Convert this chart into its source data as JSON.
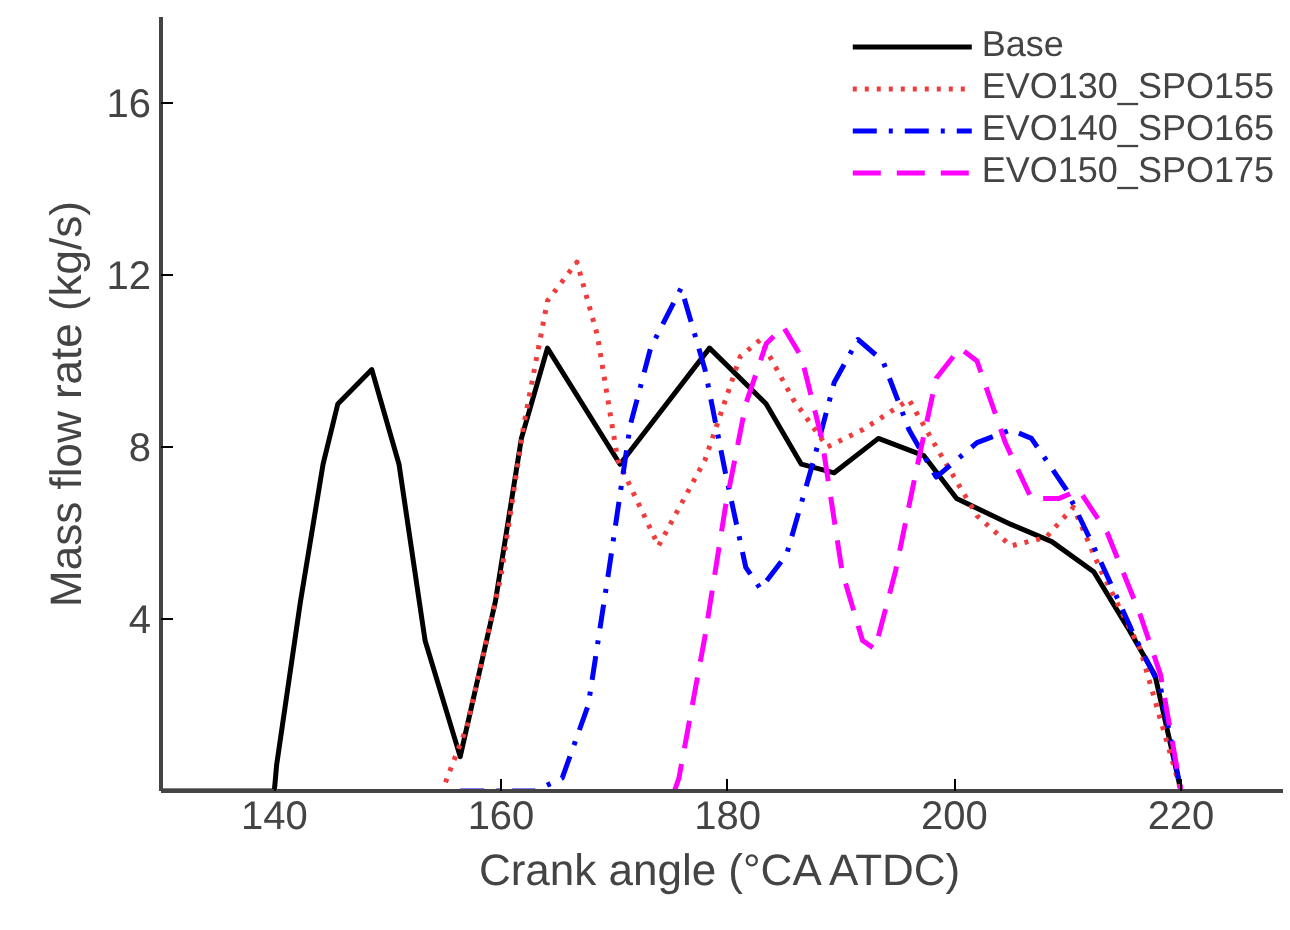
{
  "chart_data": {
    "type": "line",
    "xlabel": "Crank angle (°CA ATDC)",
    "ylabel": "Mass flow rate (kg/s)",
    "xlim": [
      130,
      229
    ],
    "ylim": [
      0,
      18
    ],
    "xticks": [
      140,
      160,
      180,
      200,
      220
    ],
    "yticks": [
      4,
      8,
      12,
      16
    ],
    "grid": false,
    "legend": "top right",
    "series": [
      {
        "name": "Base",
        "color": "#000000",
        "line_style": "solid",
        "x": [
          130,
          140,
          140.2,
          142.3,
          144.3,
          145.6,
          148.6,
          151,
          153.3,
          156.4,
          159.5,
          161.8,
          164.1,
          170.5,
          178.4,
          183.4,
          186.5,
          189.4,
          193.3,
          197.3,
          200.2,
          205,
          208.6,
          212.3,
          215.3,
          217.7,
          220
        ],
        "values": [
          0,
          0,
          0.6,
          4.4,
          7.6,
          9.0,
          9.8,
          7.6,
          3.5,
          0.8,
          4.4,
          8.2,
          10.3,
          7.6,
          10.3,
          9.0,
          7.6,
          7.4,
          8.2,
          7.8,
          6.8,
          6.2,
          5.8,
          5.1,
          3.8,
          2.7,
          0
        ]
      },
      {
        "name": "EVO130_SPO155",
        "color": "#f03c3c",
        "line_style": "dotted",
        "x": [
          155.1,
          157,
          160,
          162,
          164.1,
          166.7,
          168.5,
          170.3,
          173.9,
          178,
          181.1,
          182.9,
          185.8,
          188.8,
          191.9,
          196,
          198.4,
          202,
          205,
          208.1,
          210.5,
          212.8,
          216.4,
          220
        ],
        "values": [
          0.2,
          1.5,
          5,
          8.5,
          11.4,
          12.3,
          10.6,
          7.7,
          5.7,
          7.7,
          10.1,
          10.5,
          9.1,
          8.0,
          8.4,
          9.1,
          8.0,
          6.4,
          5.7,
          5.9,
          6.6,
          5.2,
          3.3,
          0
        ]
      },
      {
        "name": "EVO140_SPO165",
        "color": "#0000ff",
        "line_style": "dashdot",
        "x": [
          156.4,
          163,
          165.4,
          167.7,
          169.5,
          171.4,
          173.2,
          175.9,
          178,
          179.8,
          181.6,
          182.9,
          185.2,
          187.6,
          189.4,
          191.5,
          193.7,
          196,
          198.4,
          202,
          205,
          206.8,
          209.9,
          212.8,
          215.9,
          218.2,
          220
        ],
        "values": [
          0,
          0,
          0.3,
          2.0,
          5.1,
          8.5,
          10.3,
          11.7,
          9.8,
          7.4,
          5.2,
          4.7,
          5.5,
          7.7,
          9.5,
          10.5,
          10.0,
          8.4,
          7.3,
          8.1,
          8.4,
          8.2,
          7.0,
          5.4,
          3.6,
          2.4,
          0
        ]
      },
      {
        "name": "EVO150_SPO175",
        "color": "#ff00ff",
        "line_style": "dashed",
        "x": [
          175.3,
          175.7,
          178,
          179.8,
          181.6,
          183.4,
          184.9,
          186.5,
          188.3,
          190.1,
          191.9,
          193,
          194.8,
          196.6,
          198.4,
          200.5,
          202,
          204.5,
          206.8,
          209.2,
          211,
          213.5,
          216.4,
          218.2,
          220
        ],
        "values": [
          0,
          0.3,
          3.6,
          6.6,
          9.0,
          10.4,
          10.8,
          10.1,
          8.2,
          5.1,
          3.5,
          3.3,
          5.1,
          7.4,
          9.6,
          10.3,
          10.0,
          8.1,
          6.8,
          6.8,
          7.0,
          6.0,
          4.1,
          2.7,
          0
        ]
      }
    ]
  }
}
